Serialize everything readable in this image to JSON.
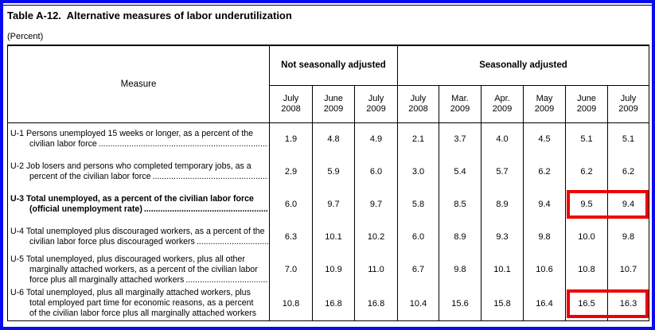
{
  "page": {
    "title": "Table A-12.  Alternative measures of labor underutilization",
    "subtitle": "(Percent)"
  },
  "colors": {
    "frame_blue": "#0a0af0",
    "highlight_red": "#ee0000",
    "text": "#000000"
  },
  "table": {
    "measure_header": "Measure",
    "groups": [
      {
        "label": "Not seasonally adjusted",
        "span": 3
      },
      {
        "label": "Seasonally adjusted",
        "span": 6
      }
    ],
    "columns": [
      "July\n2008",
      "June\n2009",
      "July\n2009",
      "July\n2008",
      "Mar.\n2009",
      "Apr.\n2009",
      "May\n2009",
      "June\n2009",
      "July\n2009"
    ],
    "leader_dots": "..................................................",
    "rows": [
      {
        "label_lines": [
          "U-1 Persons unemployed 15 weeks or longer, as a percent of the",
          "civilian labor force"
        ],
        "bold": false,
        "dots": true,
        "values": [
          "1.9",
          "4.8",
          "4.9",
          "2.1",
          "3.7",
          "4.0",
          "4.5",
          "5.1",
          "5.1"
        ],
        "highlight": []
      },
      {
        "label_lines": [
          "U-2 Job losers and persons who completed temporary jobs, as a",
          "percent of the civilian labor force"
        ],
        "bold": false,
        "dots": true,
        "values": [
          "2.9",
          "5.9",
          "6.0",
          "3.0",
          "5.4",
          "5.7",
          "6.2",
          "6.2",
          "6.2"
        ],
        "highlight": []
      },
      {
        "label_lines": [
          "U-3 Total unemployed, as a percent of the civilian labor force",
          "(official unemployment rate)"
        ],
        "bold": true,
        "dots": true,
        "values": [
          "6.0",
          "9.7",
          "9.7",
          "5.8",
          "8.5",
          "8.9",
          "9.4",
          "9.5",
          "9.4"
        ],
        "highlight": [
          7,
          8
        ]
      },
      {
        "label_lines": [
          "U-4 Total unemployed plus discouraged workers, as a percent of the",
          "civilian labor force plus discouraged workers"
        ],
        "bold": false,
        "dots": true,
        "values": [
          "6.3",
          "10.1",
          "10.2",
          "6.0",
          "8.9",
          "9.3",
          "9.8",
          "10.0",
          "9.8"
        ],
        "highlight": []
      },
      {
        "label_lines": [
          "U-5 Total unemployed, plus discouraged workers, plus all other",
          "marginally attached workers, as a percent of the civilian labor",
          "force plus all marginally attached workers"
        ],
        "bold": false,
        "dots": true,
        "values": [
          "7.0",
          "10.9",
          "11.0",
          "6.7",
          "9.8",
          "10.1",
          "10.6",
          "10.8",
          "10.7"
        ],
        "highlight": []
      },
      {
        "label_lines": [
          "U-6 Total unemployed, plus all marginally attached workers, plus",
          "total employed part time for economic reasons, as a percent",
          "of the civilian labor force plus all marginally attached workers"
        ],
        "bold": false,
        "dots": false,
        "values": [
          "10.8",
          "16.8",
          "16.8",
          "10.4",
          "15.6",
          "15.8",
          "16.4",
          "16.5",
          "16.3"
        ],
        "highlight": [
          7,
          8
        ]
      }
    ]
  }
}
